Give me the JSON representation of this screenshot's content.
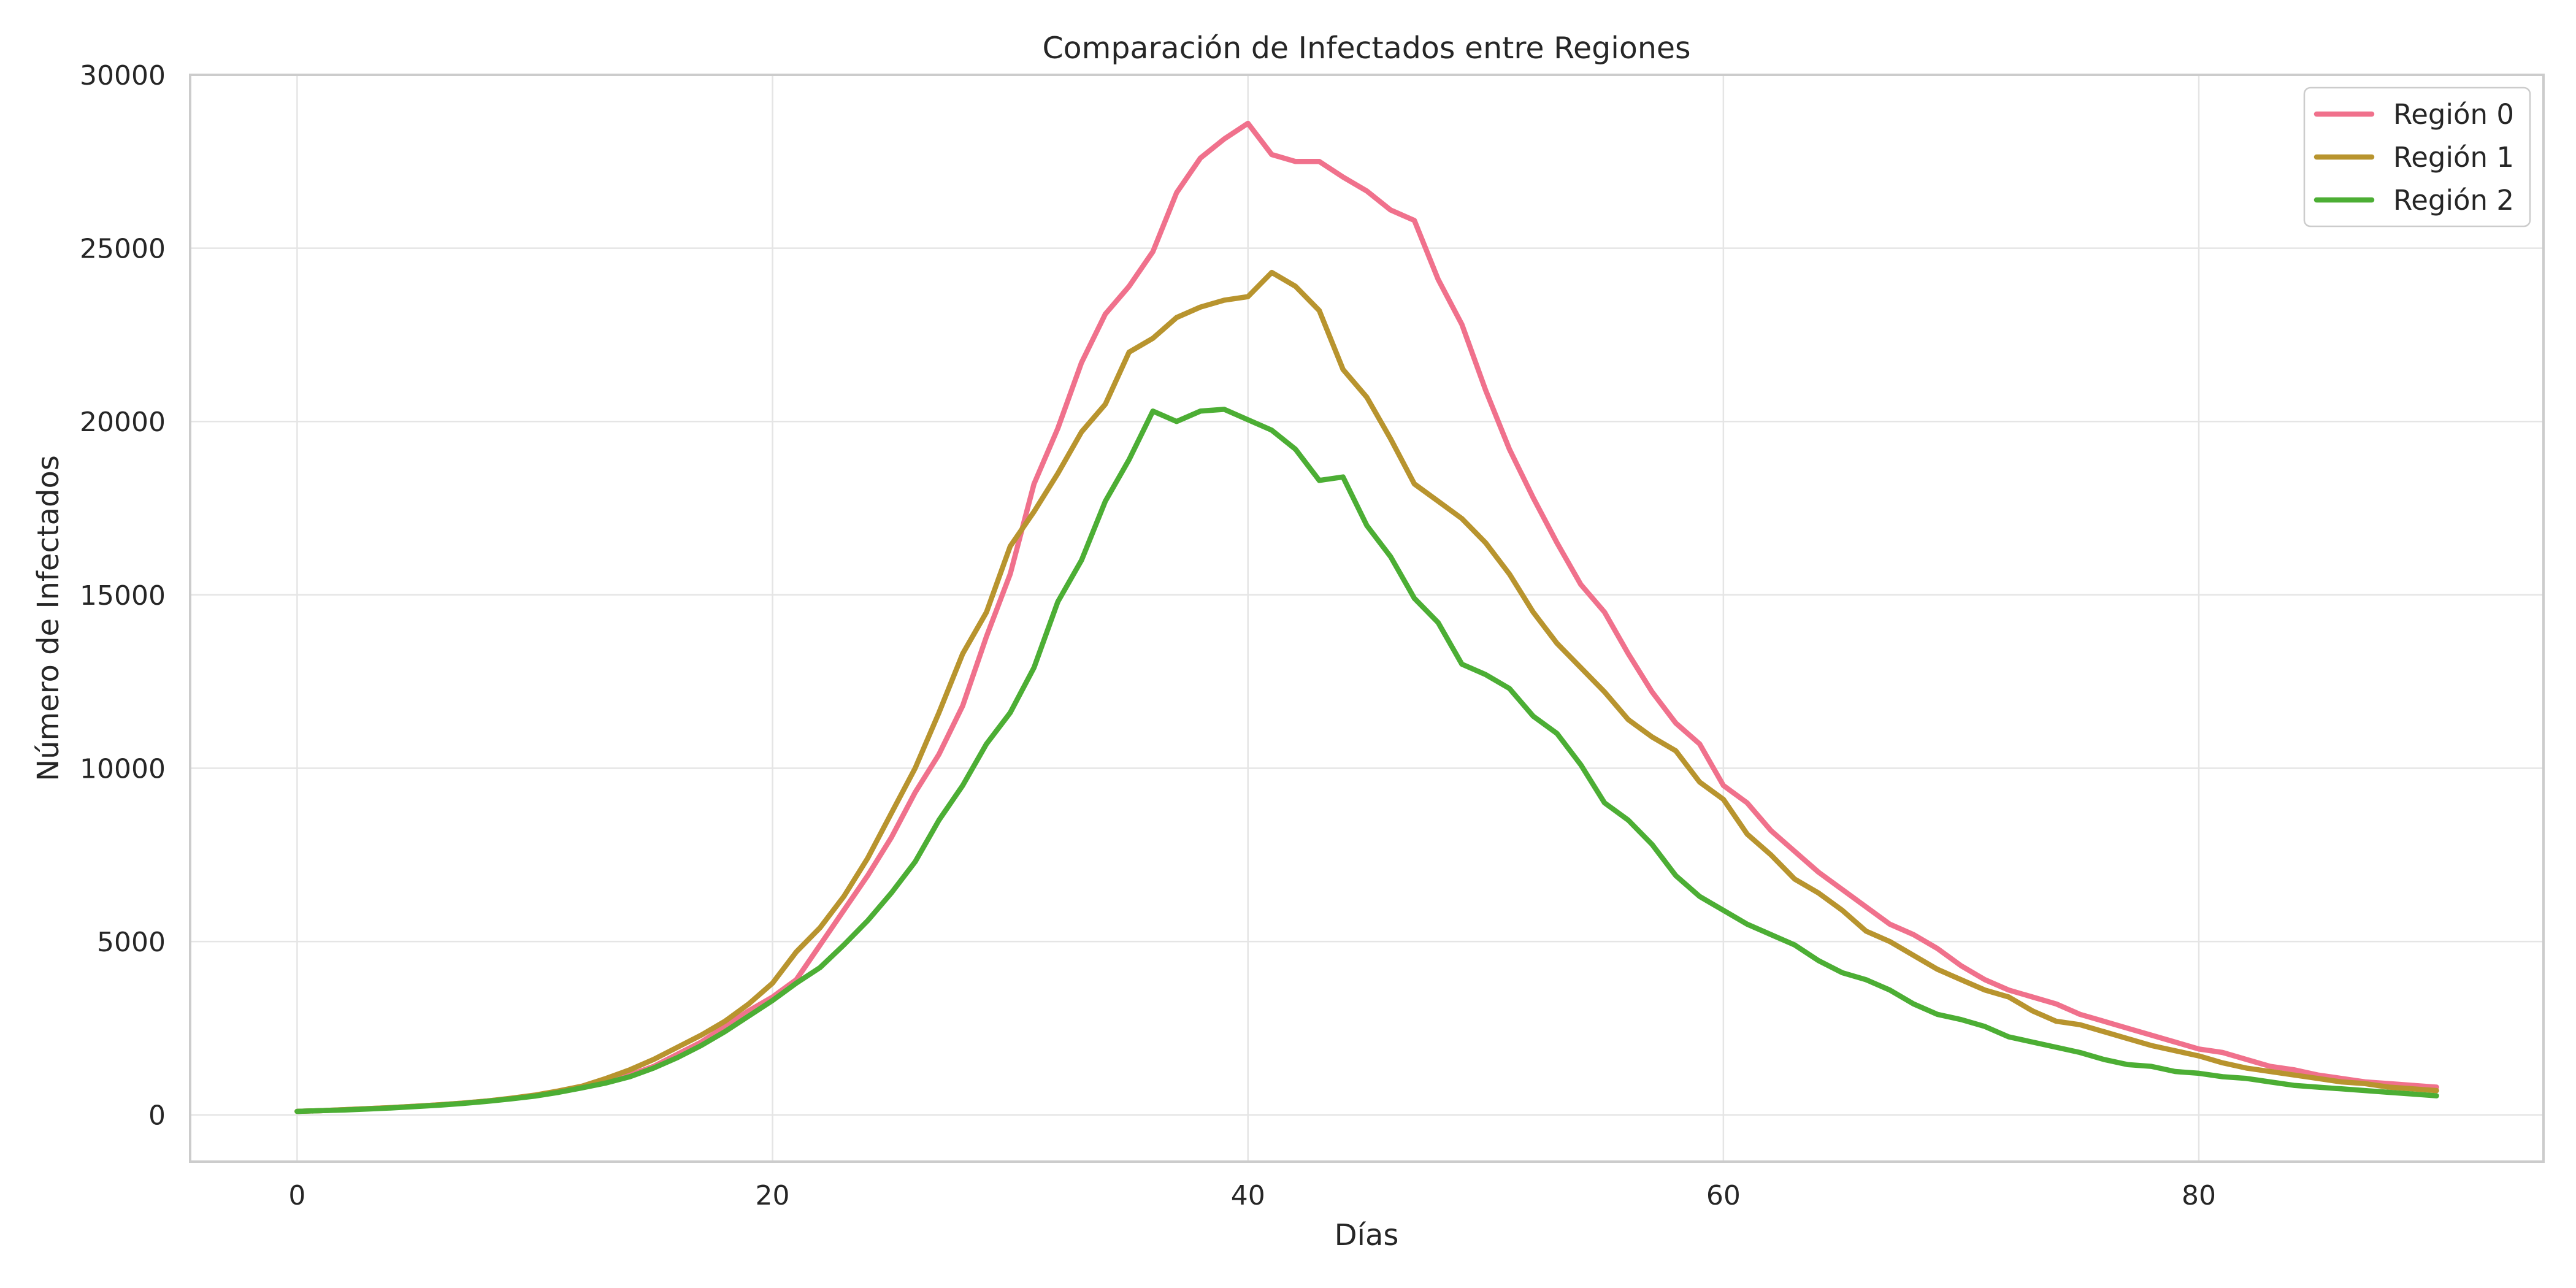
{
  "chart_data": {
    "type": "line",
    "title": "Comparación de Infectados entre Regiones",
    "xlabel": "Días",
    "ylabel": "Número de Infectados",
    "xlim": [
      -4.5,
      94.5
    ],
    "ylim": [
      -1350,
      30000
    ],
    "x_ticks": [
      0,
      20,
      40,
      60,
      80
    ],
    "y_ticks": [
      0,
      5000,
      10000,
      15000,
      20000,
      25000,
      30000
    ],
    "grid": true,
    "legend_position": "top-right",
    "x": [
      0,
      1,
      2,
      3,
      4,
      5,
      6,
      7,
      8,
      9,
      10,
      11,
      12,
      13,
      14,
      15,
      16,
      17,
      18,
      19,
      20,
      21,
      22,
      23,
      24,
      25,
      26,
      27,
      28,
      29,
      30,
      31,
      32,
      33,
      34,
      35,
      36,
      37,
      38,
      39,
      40,
      41,
      42,
      43,
      44,
      45,
      46,
      47,
      48,
      49,
      50,
      51,
      52,
      53,
      54,
      55,
      56,
      57,
      58,
      59,
      60,
      61,
      62,
      63,
      64,
      65,
      66,
      67,
      68,
      69,
      70,
      71,
      72,
      73,
      74,
      75,
      76,
      77,
      78,
      79,
      80,
      81,
      82,
      83,
      84,
      85,
      86,
      87,
      88,
      89,
      90
    ],
    "series": [
      {
        "name": "Región 0",
        "color": "#f0718c",
        "values": [
          100,
          120,
          150,
          180,
          210,
          250,
          290,
          340,
          400,
          470,
          550,
          660,
          800,
          960,
          1150,
          1400,
          1750,
          2100,
          2550,
          3000,
          3400,
          3900,
          4900,
          5900,
          6900,
          8000,
          9300,
          10400,
          11800,
          13800,
          15600,
          18200,
          19800,
          21700,
          23100,
          23900,
          24900,
          26600,
          27600,
          28150,
          28600,
          27700,
          27500,
          27500,
          27050,
          26650,
          26100,
          25800,
          24100,
          22800,
          20900,
          19200,
          17800,
          16500,
          15300,
          14500,
          13300,
          12200,
          11300,
          10700,
          9500,
          9000,
          8200,
          7600,
          7000,
          6500,
          6000,
          5500,
          5200,
          4800,
          4300,
          3900,
          3600,
          3400,
          3200,
          2900,
          2700,
          2500,
          2300,
          2100,
          1900,
          1800,
          1600,
          1400,
          1300,
          1150,
          1050,
          950,
          900,
          850,
          800
        ]
      },
      {
        "name": "Región 1",
        "color": "#b8942e",
        "values": [
          100,
          120,
          150,
          180,
          210,
          250,
          290,
          340,
          400,
          480,
          570,
          690,
          830,
          1050,
          1300,
          1600,
          1950,
          2300,
          2700,
          3200,
          3800,
          4700,
          5400,
          6300,
          7400,
          8700,
          10000,
          11600,
          13300,
          14500,
          16400,
          17400,
          18500,
          19700,
          20500,
          22000,
          22400,
          23000,
          23300,
          23500,
          23600,
          24300,
          23900,
          23200,
          21500,
          20700,
          19500,
          18200,
          17700,
          17200,
          16500,
          15600,
          14500,
          13600,
          12900,
          12200,
          11400,
          10900,
          10500,
          9600,
          9100,
          8100,
          7500,
          6800,
          6400,
          5900,
          5300,
          5000,
          4600,
          4200,
          3900,
          3600,
          3400,
          3000,
          2700,
          2600,
          2400,
          2200,
          2000,
          1850,
          1700,
          1500,
          1350,
          1250,
          1150,
          1050,
          950,
          900,
          800,
          750,
          700
        ]
      },
      {
        "name": "Región 2",
        "color": "#4cae34",
        "values": [
          100,
          120,
          140,
          170,
          200,
          240,
          280,
          330,
          390,
          460,
          540,
          650,
          780,
          920,
          1100,
          1350,
          1650,
          2000,
          2400,
          2850,
          3300,
          3800,
          4250,
          4900,
          5600,
          6400,
          7300,
          8500,
          9500,
          10700,
          11600,
          12900,
          14800,
          16000,
          17700,
          18900,
          20300,
          20000,
          20300,
          20350,
          20050,
          19750,
          19200,
          18300,
          18400,
          17000,
          16100,
          14900,
          14200,
          13000,
          12700,
          12300,
          11500,
          11000,
          10100,
          9000,
          8500,
          7800,
          6900,
          6300,
          5900,
          5500,
          5200,
          4900,
          4450,
          4100,
          3900,
          3600,
          3200,
          2900,
          2750,
          2550,
          2250,
          2100,
          1950,
          1800,
          1600,
          1450,
          1400,
          1250,
          1200,
          1100,
          1050,
          950,
          850,
          800,
          750,
          700,
          650,
          600,
          550
        ]
      }
    ]
  }
}
